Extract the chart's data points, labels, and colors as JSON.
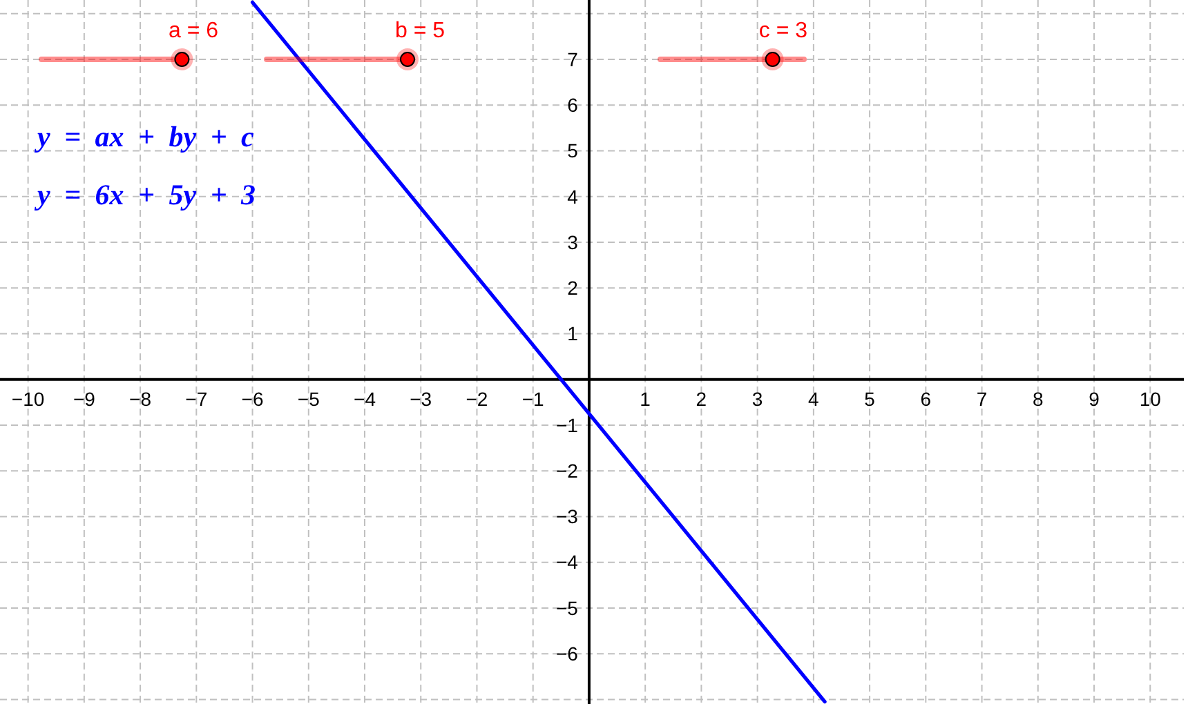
{
  "chart_data": {
    "type": "line",
    "annotations": [
      "a = 6",
      "b = 5",
      "c = 3",
      "y = ax + by + c",
      "y = 6x + 5y + 3"
    ],
    "x": [
      -6,
      4.2
    ],
    "series": [
      {
        "color": "#0000ff",
        "values": [
          8.25,
          -7.05
        ]
      }
    ],
    "xlim": [
      -10.5,
      10.6
    ],
    "ylim": [
      -7.1,
      8.3
    ],
    "xticks": [
      -10,
      -9,
      -8,
      -7,
      -6,
      -5,
      -4,
      -3,
      -2,
      -1,
      1,
      2,
      3,
      4,
      5,
      6,
      7,
      8,
      9,
      10
    ],
    "yticks": [
      {
        "value": -7,
        "label": null
      },
      -6,
      -5,
      -4,
      -3,
      -2,
      -1,
      1,
      2,
      3,
      4,
      5,
      6,
      7,
      {
        "value": 8,
        "label": null
      }
    ],
    "grid": true
  }
}
